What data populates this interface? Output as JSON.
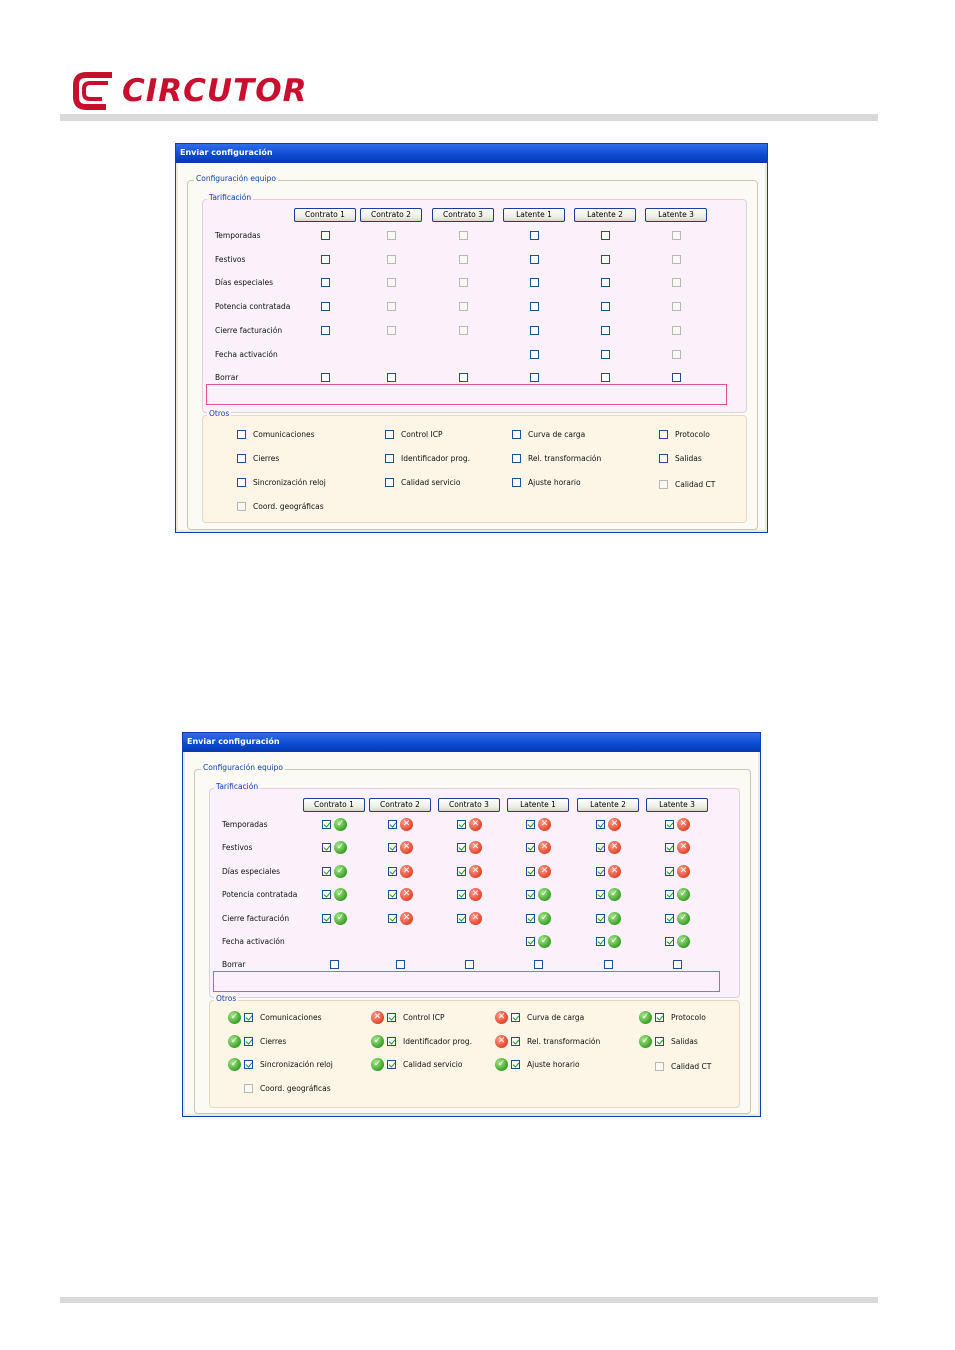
{
  "brand": {
    "name": "CIRCUTOR",
    "color": "#c8102e"
  },
  "window_top": {
    "title": "Enviar configuración",
    "group_equipo": "Configuración equipo",
    "group_tarificacion": "Tarificación",
    "group_otros": "Otros",
    "columns": [
      "Contrato 1",
      "Contrato 2",
      "Contrato 3",
      "Latente 1",
      "Latente 2",
      "Latente 3"
    ],
    "rows": [
      "Temporadas",
      "Festivos",
      "Días especiales",
      "Potencia contratada",
      "Cierre facturación",
      "Fecha activación",
      "Borrar"
    ],
    "otros": [
      [
        "Comunicaciones",
        "Control ICP",
        "Curva de carga",
        "Protocolo"
      ],
      [
        "Cierres",
        "Identificador prog.",
        "Rel. transformación",
        "Salidas"
      ],
      [
        "Sincronización reloj",
        "Calidad servicio",
        "Ajuste horario",
        "Calidad CT"
      ],
      [
        "Coord. geográficas"
      ]
    ]
  },
  "window_bottom": {
    "title": "Enviar configuración",
    "group_equipo": "Configuración equipo",
    "group_tarificacion": "Tarificación",
    "group_otros": "Otros",
    "columns": [
      "Contrato 1",
      "Contrato 2",
      "Contrato 3",
      "Latente 1",
      "Latente 2",
      "Latente 3"
    ],
    "rows": [
      "Temporadas",
      "Festivos",
      "Días especiales",
      "Potencia contratada",
      "Cierre facturación",
      "Fecha activación",
      "Borrar"
    ],
    "status_matrix": [
      [
        "ok",
        "err",
        "err",
        "err",
        "err",
        "err"
      ],
      [
        "ok",
        "err",
        "err",
        "err",
        "err",
        "err"
      ],
      [
        "ok",
        "err",
        "err",
        "err",
        "err",
        "err"
      ],
      [
        "ok",
        "err",
        "err",
        "ok",
        "ok",
        "ok"
      ],
      [
        "ok",
        "err",
        "err",
        "ok",
        "ok",
        "ok"
      ],
      [
        "",
        "",
        "",
        "ok",
        "ok",
        "ok"
      ],
      [
        "",
        "",
        "",
        "",
        "",
        ""
      ]
    ],
    "otros": [
      [
        "Comunicaciones",
        "Control ICP",
        "Curva de carga",
        "Protocolo"
      ],
      [
        "Cierres",
        "Identificador prog.",
        "Rel. transformación",
        "Salidas"
      ],
      [
        "Sincronización reloj",
        "Calidad servicio",
        "Ajuste horario",
        "Calidad CT"
      ],
      [
        "Coord. geográficas"
      ]
    ],
    "otros_status": [
      [
        "ok",
        "err",
        "err",
        "ok"
      ],
      [
        "ok",
        "ok",
        "err",
        "ok"
      ],
      [
        "ok",
        "ok",
        "ok",
        ""
      ],
      [
        ""
      ]
    ]
  },
  "colors": {
    "ok": "#3aa028",
    "err": "#e2462c",
    "title_bar": "#0a4ad0",
    "highlight": "#e0559a"
  }
}
